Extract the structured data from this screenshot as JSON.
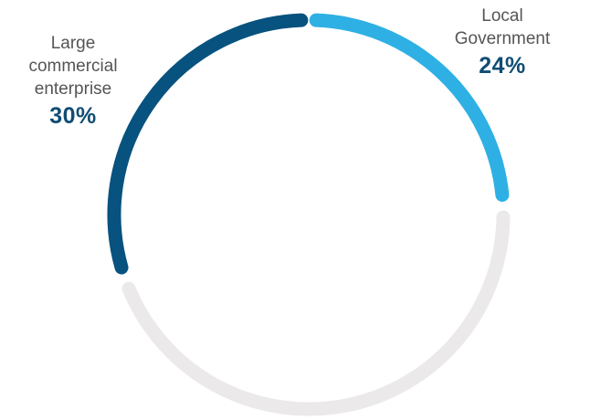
{
  "chart_data": {
    "type": "pie",
    "style": "donut-ring",
    "slices": [
      {
        "label": "Local\nGovernment",
        "value": 24,
        "display": "24%",
        "color": "#2eb0e4",
        "label_color": "#0f4d73"
      },
      {
        "label": "Large\ncommercial\nenterprise",
        "value": 30,
        "display": "30%",
        "color": "#07527e",
        "label_color": "#0f4d73"
      }
    ],
    "remainder_color": "#ebe9ea",
    "start": "top",
    "direction": "clockwise"
  }
}
